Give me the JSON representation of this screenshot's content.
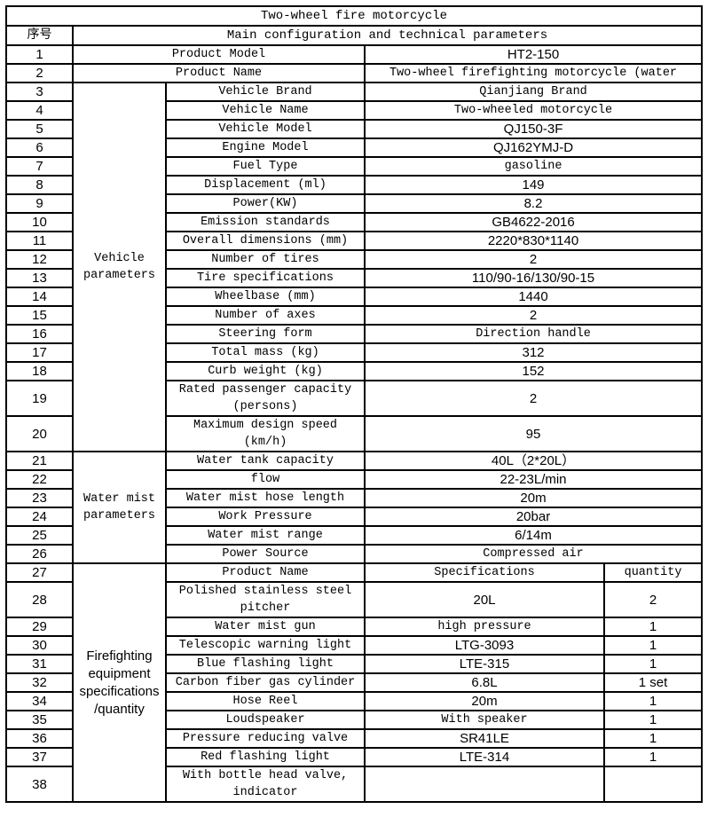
{
  "title": "Two-wheel fire motorcycle",
  "header": {
    "no": "序号",
    "main": "Main configuration and technical parameters"
  },
  "sections": [
    {
      "label": null,
      "rows": [
        {
          "no": "1",
          "name": "Product Model",
          "spec": "HT2-150"
        },
        {
          "no": "2",
          "name": "Product Name",
          "spec": "Two-wheel firefighting motorcycle (water"
        }
      ]
    },
    {
      "label": "Vehicle parameters",
      "rows": [
        {
          "no": "3",
          "name": "Vehicle Brand",
          "spec": "Qianjiang Brand"
        },
        {
          "no": "4",
          "name": "Vehicle Name",
          "spec": "Two-wheeled motorcycle"
        },
        {
          "no": "5",
          "name": "Vehicle Model",
          "spec": "QJ150-3F"
        },
        {
          "no": "6",
          "name": "Engine Model",
          "spec": "QJ162YMJ-D"
        },
        {
          "no": "7",
          "name": "Fuel Type",
          "spec": "gasoline"
        },
        {
          "no": "8",
          "name": "Displacement (ml)",
          "spec": "149"
        },
        {
          "no": "9",
          "name": "Power(KW)",
          "spec": "8.2"
        },
        {
          "no": "10",
          "name": "Emission standards",
          "spec": "GB4622-2016"
        },
        {
          "no": "11",
          "name": "Overall dimensions (mm)",
          "spec": "2220*830*1140"
        },
        {
          "no": "12",
          "name": "Number of tires",
          "spec": "2"
        },
        {
          "no": "13",
          "name": "Tire specifications",
          "spec": "110/90-16/130/90-15"
        },
        {
          "no": "14",
          "name": "Wheelbase (mm)",
          "spec": "1440"
        },
        {
          "no": "15",
          "name": "Number of axes",
          "spec": "2"
        },
        {
          "no": "16",
          "name": "Steering form",
          "spec": "Direction handle"
        },
        {
          "no": "17",
          "name": "Total mass (kg)",
          "spec": "312"
        },
        {
          "no": "18",
          "name": "Curb weight (kg)",
          "spec": "152"
        },
        {
          "no": "19",
          "name": "Rated passenger capacity (persons)",
          "spec": "2"
        },
        {
          "no": "20",
          "name": "Maximum design speed (km/h)",
          "spec": "95"
        }
      ]
    },
    {
      "label": "Water mist parameters",
      "rows": [
        {
          "no": "21",
          "name": "Water tank capacity",
          "spec": "40L（2*20L）"
        },
        {
          "no": "22",
          "name": "flow",
          "spec": "22-23L/min"
        },
        {
          "no": "23",
          "name": "Water mist hose length",
          "spec": "20m"
        },
        {
          "no": "24",
          "name": "Work Pressure",
          "spec": "20bar"
        },
        {
          "no": "25",
          "name": "Water mist range",
          "spec": "6/14m"
        },
        {
          "no": "26",
          "name": "Power Source",
          "spec": "Compressed air"
        }
      ]
    },
    {
      "label": "Firefighting equipment specifications /quantity",
      "rows": [
        {
          "no": "27",
          "name": "Product Name",
          "spec": "Specifications",
          "qty": "quantity"
        },
        {
          "no": "28",
          "name": "Polished stainless steel pitcher",
          "spec": "20L",
          "qty": "2"
        },
        {
          "no": "29",
          "name": "Water mist gun",
          "spec": "high pressure",
          "qty": "1"
        },
        {
          "no": "30",
          "name": "Telescopic warning light",
          "spec": "LTG-3093",
          "qty": "1"
        },
        {
          "no": "31",
          "name": "Blue flashing light",
          "spec": "LTE-315",
          "qty": "1"
        },
        {
          "no": "32",
          "name": "Carbon fiber gas cylinder",
          "spec": "6.8L",
          "qty": "1 set"
        },
        {
          "no": "34",
          "name": "Hose Reel",
          "spec": "20m",
          "qty": "1"
        },
        {
          "no": "35",
          "name": "Loudspeaker",
          "spec": "With speaker",
          "qty": "1"
        },
        {
          "no": "36",
          "name": "Pressure reducing valve",
          "spec": "SR41LE",
          "qty": "1"
        },
        {
          "no": "37",
          "name": "Red flashing light",
          "spec": "LTE-314",
          "qty": "1"
        },
        {
          "no": "38",
          "name": "With bottle head valve, indicator",
          "spec": "",
          "qty": ""
        }
      ]
    }
  ]
}
